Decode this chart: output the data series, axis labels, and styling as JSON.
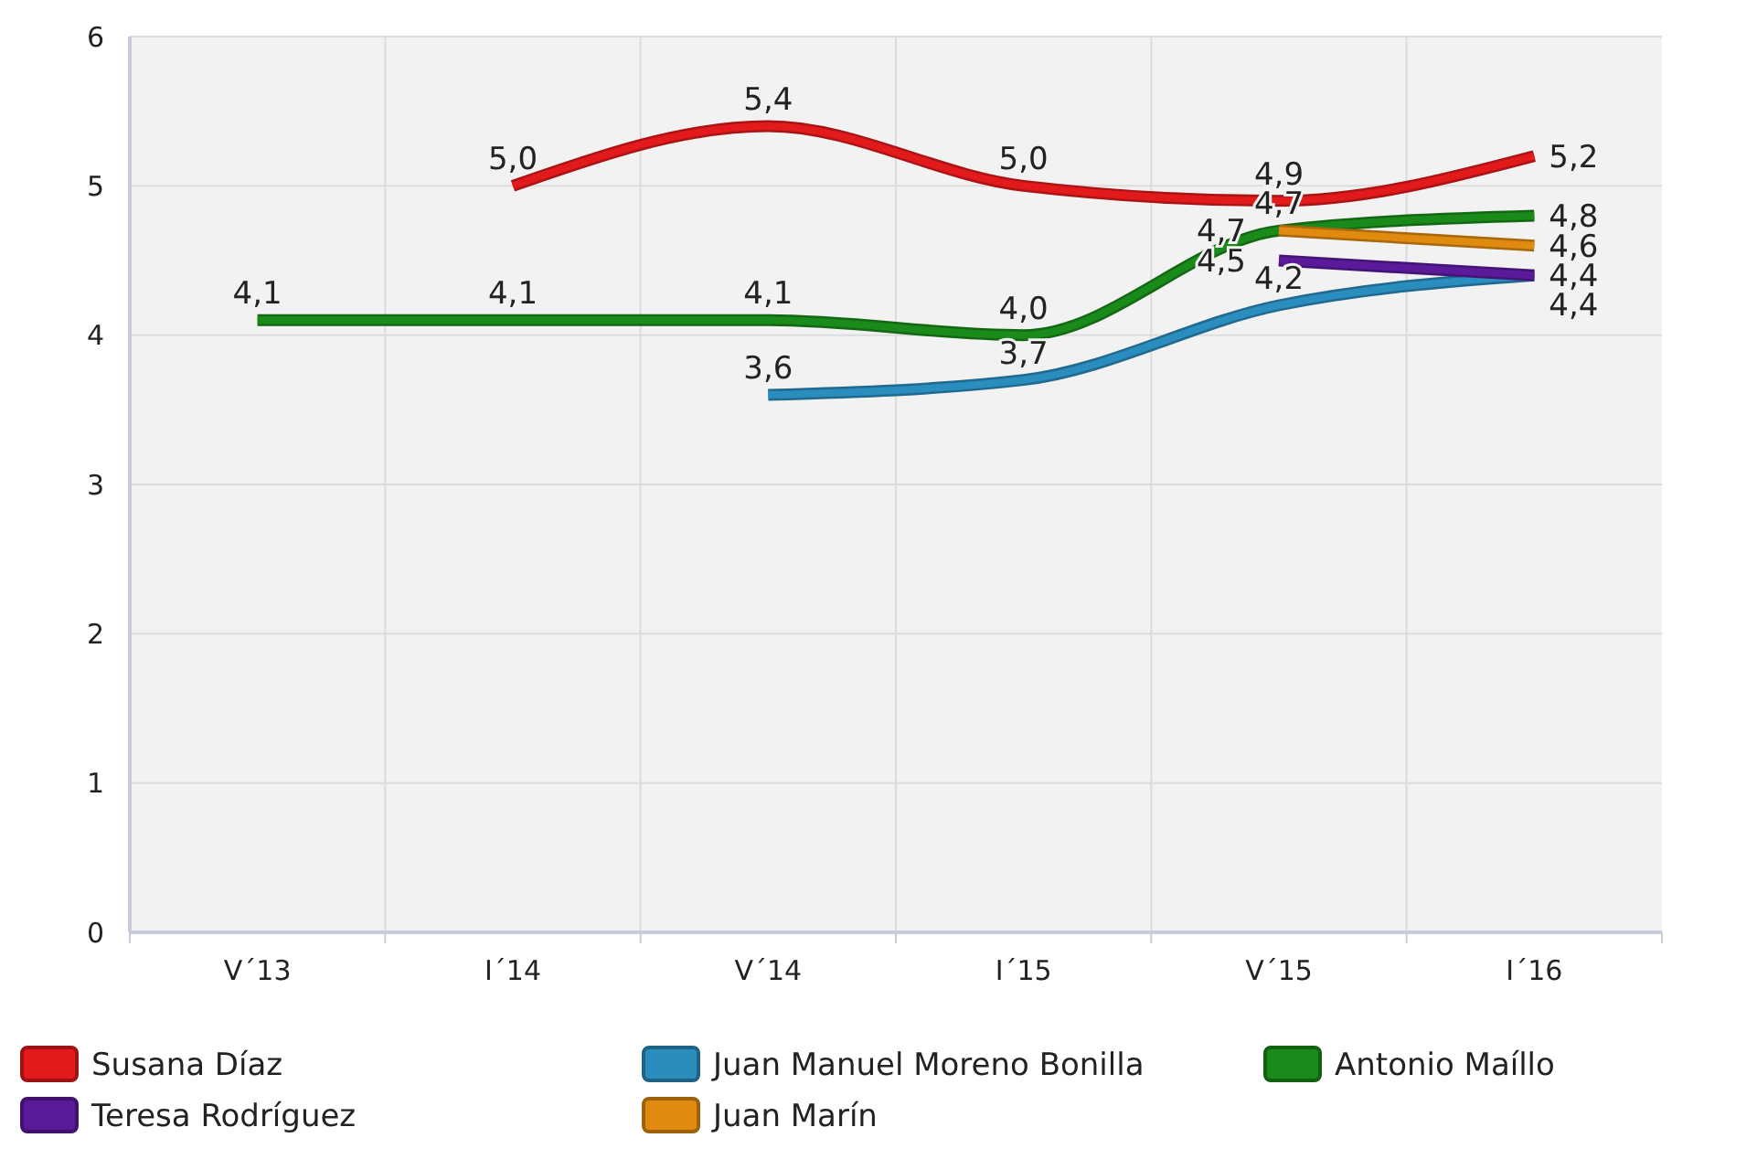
{
  "chart_data": {
    "type": "line",
    "categories": [
      "V´13",
      "I´14",
      "V´14",
      "I´15",
      "V´15",
      "I´16"
    ],
    "ylim": [
      0,
      6
    ],
    "yticks": [
      0,
      1,
      2,
      3,
      4,
      5,
      6
    ],
    "grid": true,
    "legend": "bottom",
    "series": [
      {
        "name": "Susana Díaz",
        "color": "#e31a1c",
        "values": [
          null,
          5.0,
          5.4,
          5.0,
          4.9,
          5.2
        ],
        "value_labels": [
          null,
          "5,0",
          "5,4",
          "5,0",
          "4,9",
          "5,2"
        ]
      },
      {
        "name": "Juan Manuel Moreno Bonilla",
        "color": "#2b8cbe",
        "values": [
          null,
          null,
          3.6,
          3.7,
          4.2,
          4.4
        ],
        "value_labels": [
          null,
          null,
          "3,6",
          "3,7",
          "4,2",
          "4,4"
        ]
      },
      {
        "name": "Antonio Maíllo",
        "color": "#1a8a1a",
        "values": [
          4.1,
          4.1,
          4.1,
          4.0,
          4.7,
          4.8
        ],
        "value_labels": [
          "4,1",
          "4,1",
          "4,1",
          "4,0",
          "4,7",
          "4,8"
        ]
      },
      {
        "name": "Teresa Rodríguez",
        "color": "#5b1a9a",
        "values": [
          null,
          null,
          null,
          null,
          4.5,
          4.4
        ],
        "value_labels": [
          null,
          null,
          null,
          null,
          "4,5",
          "4,4"
        ]
      },
      {
        "name": "Juan Marín",
        "color": "#e08a10",
        "values": [
          null,
          null,
          null,
          null,
          4.7,
          4.6
        ],
        "value_labels": [
          null,
          null,
          null,
          null,
          "4,7",
          "4,6"
        ]
      }
    ]
  }
}
